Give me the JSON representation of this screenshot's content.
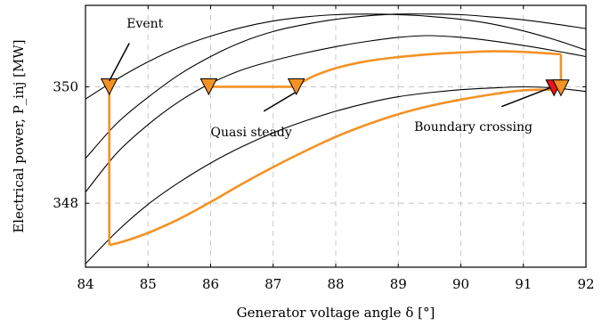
{
  "chart_data": {
    "type": "line",
    "title": "",
    "xlabel": "Generator voltage angle δ [°]",
    "ylabel": "Electrical power, P_inj [MW]",
    "xlim": [
      84,
      92
    ],
    "ylim": [
      346.9,
      351.4
    ],
    "xticks": [
      84,
      85,
      86,
      87,
      88,
      89,
      90,
      91,
      92
    ],
    "yticks": [
      348,
      350
    ],
    "grid": true,
    "legend": "none",
    "colors": {
      "trajectory": "#f39224",
      "marker": "#f39224",
      "crossing_marker": "#e8141b",
      "curves": "#000000"
    },
    "power_curves": [
      {
        "x": [
          84,
          84.5,
          85,
          85.5,
          86,
          86.5,
          87,
          87.5,
          88,
          88.5,
          89,
          89.5,
          90,
          90.5,
          91,
          91.5,
          92
        ],
        "y": [
          349.79,
          350.13,
          350.43,
          350.68,
          350.87,
          351.02,
          351.13,
          351.2,
          351.24,
          351.25,
          351.24,
          351.21,
          351.16,
          351.08,
          350.96,
          350.81,
          350.63
        ]
      },
      {
        "x": [
          84,
          84.5,
          85,
          85.5,
          86,
          86.5,
          87,
          87.5,
          88,
          88.5,
          89,
          89.5,
          90,
          90.5,
          91,
          91.5,
          92
        ],
        "y": [
          348.77,
          349.37,
          349.82,
          350.21,
          350.52,
          350.77,
          350.95,
          351.07,
          351.16,
          351.22,
          351.25,
          351.25,
          351.24,
          351.2,
          351.15,
          351.08,
          351.0
        ]
      },
      {
        "x": [
          84,
          84.5,
          85,
          85.5,
          86,
          86.5,
          87,
          87.5,
          88,
          88.5,
          89,
          89.5,
          90,
          90.5,
          91,
          91.5,
          92
        ],
        "y": [
          348.19,
          348.86,
          349.35,
          349.75,
          350.06,
          350.29,
          350.45,
          350.58,
          350.69,
          350.78,
          350.85,
          350.88,
          350.85,
          350.79,
          350.71,
          350.62,
          350.52
        ]
      },
      {
        "x": [
          84,
          84.5,
          85,
          85.5,
          86,
          86.5,
          87,
          87.5,
          88,
          88.5,
          89,
          89.5,
          90,
          90.5,
          91,
          91.5,
          92
        ],
        "y": [
          346.96,
          347.51,
          347.98,
          348.36,
          348.69,
          348.97,
          349.21,
          349.41,
          349.58,
          349.72,
          349.83,
          349.9,
          349.95,
          349.98,
          350.0,
          349.98,
          349.92
        ]
      }
    ],
    "trajectory": {
      "x": [
        85.97,
        87.37,
        87.6,
        88.0,
        88.5,
        89.0,
        89.5,
        90.0,
        90.5,
        91.0,
        91.6,
        91.6,
        91.0,
        90.5,
        90.0,
        89.5,
        89.0,
        88.5,
        88.0,
        87.5,
        87.0,
        86.5,
        86.0,
        85.5,
        85.0,
        84.6,
        84.38,
        84.38
      ],
      "y": [
        350.0,
        350.0,
        350.16,
        350.32,
        350.44,
        350.51,
        350.56,
        350.59,
        350.61,
        350.6,
        350.56,
        349.95,
        349.94,
        349.87,
        349.78,
        349.67,
        349.53,
        349.35,
        349.14,
        348.89,
        348.62,
        348.33,
        348.02,
        347.73,
        347.49,
        347.34,
        347.28,
        350.0
      ]
    },
    "markers": [
      {
        "x": 84.38,
        "y": 350.0,
        "color": "#f39224"
      },
      {
        "x": 85.97,
        "y": 350.0,
        "color": "#f39224"
      },
      {
        "x": 87.37,
        "y": 350.0,
        "color": "#f39224"
      },
      {
        "x": 91.49,
        "y": 349.98,
        "color": "#e8141b"
      },
      {
        "x": 91.6,
        "y": 349.98,
        "color": "#f39224"
      }
    ],
    "annotations": [
      {
        "text": "Event",
        "x": 84.95,
        "y": 351.02,
        "arrow_from": [
          84.7,
          350.75
        ],
        "arrow_to": [
          84.38,
          350.1
        ]
      },
      {
        "text": "Quasi steady",
        "x": 86.65,
        "y": 349.15,
        "arrow_from": [
          86.85,
          349.58
        ],
        "arrow_to": [
          87.35,
          349.9
        ]
      },
      {
        "text": "Boundary crossing",
        "x": 90.2,
        "y": 349.24,
        "arrow_from": [
          90.65,
          349.66
        ],
        "arrow_to": [
          91.42,
          349.98
        ]
      }
    ]
  }
}
